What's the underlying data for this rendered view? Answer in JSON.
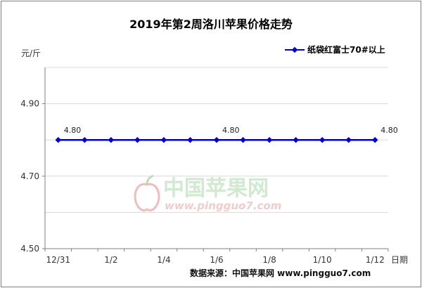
{
  "chart_data": {
    "type": "line",
    "title": "2019年第2周洛川苹果价格走势",
    "ylabel": "元/斤",
    "xlabel": "日期",
    "x_tick_labels": [
      "12/31",
      "1/2",
      "1/4",
      "1/6",
      "1/8",
      "1/10",
      "1/12"
    ],
    "y_tick_labels": [
      "4.50",
      "4.70",
      "4.90"
    ],
    "ylim": [
      4.5,
      5.0
    ],
    "grid": "horizontal",
    "legend_position": "top-right",
    "series": [
      {
        "name": "纸袋红富士70#以上",
        "color": "#0000cc",
        "values": [
          4.8,
          4.8,
          4.8,
          4.8,
          4.8,
          4.8,
          4.8,
          4.8,
          4.8,
          4.8,
          4.8,
          4.8,
          4.8
        ],
        "labels": [
          {
            "index": 0,
            "text": "4.80"
          },
          {
            "index": 6,
            "text": "4.80"
          },
          {
            "index": 12,
            "text": "4.80"
          }
        ]
      }
    ],
    "source": "数据来源：中国苹果网 www.pingguo7.com",
    "watermark": {
      "name": "中国苹果网",
      "url": "www.pingguo7.com"
    }
  }
}
